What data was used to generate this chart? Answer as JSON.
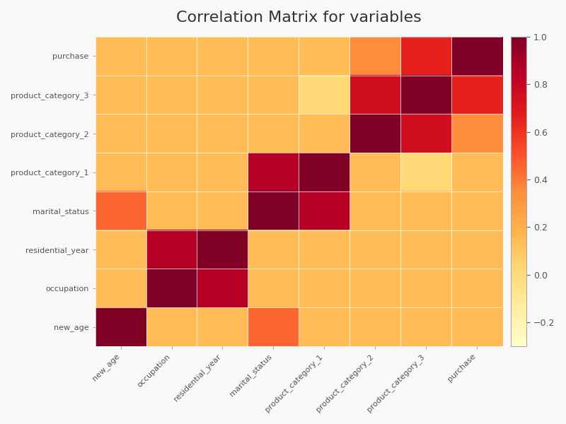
{
  "title": "Correlation Matrix for variables",
  "variables": [
    "new_age",
    "occupation",
    "residential_year",
    "marital_status",
    "product_category_1",
    "product_category_2",
    "product_category_3",
    "purchase"
  ],
  "matrix": [
    [
      1.0,
      0.15,
      0.15,
      0.45,
      0.15,
      0.15,
      0.15,
      0.15
    ],
    [
      0.15,
      1.0,
      0.85,
      0.15,
      0.15,
      0.15,
      0.15,
      0.15
    ],
    [
      0.15,
      0.85,
      1.0,
      0.15,
      0.15,
      0.15,
      0.15,
      0.15
    ],
    [
      0.45,
      0.15,
      0.15,
      1.0,
      0.85,
      0.15,
      0.15,
      0.15
    ],
    [
      0.15,
      0.15,
      0.15,
      0.85,
      1.0,
      0.15,
      0.0,
      0.15
    ],
    [
      0.15,
      0.15,
      0.15,
      0.15,
      0.15,
      1.0,
      0.75,
      0.35
    ],
    [
      0.15,
      0.15,
      0.15,
      0.15,
      0.0,
      0.75,
      1.0,
      0.65
    ],
    [
      0.15,
      0.15,
      0.15,
      0.15,
      0.15,
      0.35,
      0.65,
      1.0
    ]
  ],
  "vmin": -0.3,
  "vmax": 1.0,
  "colorbar_ticks": [
    -0.2,
    0.0,
    0.2,
    0.4,
    0.6,
    0.8,
    1.0
  ],
  "title_fontsize": 16,
  "background_color": "#f8f8f8",
  "colormap": "YlOrRd"
}
